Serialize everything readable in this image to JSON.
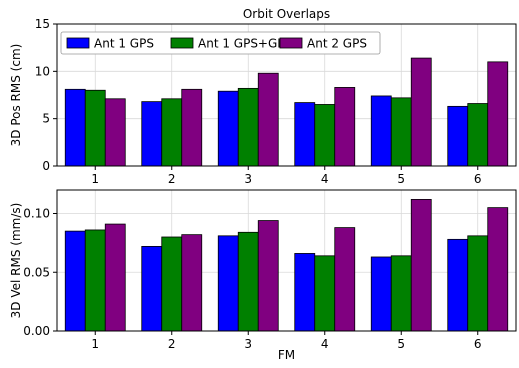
{
  "chart_data": [
    {
      "type": "bar",
      "title": "Orbit Overlaps",
      "xlabel": "",
      "ylabel": "3D Pos RMS (cm)",
      "categories": [
        "1",
        "2",
        "3",
        "4",
        "5",
        "6"
      ],
      "series": [
        {
          "name": "Ant 1 GPS",
          "color": "#0000ff",
          "values": [
            8.1,
            6.8,
            7.9,
            6.7,
            7.4,
            6.3
          ]
        },
        {
          "name": "Ant 1 GPS+GLO",
          "color": "#008000",
          "values": [
            8.0,
            7.1,
            8.2,
            6.5,
            7.2,
            6.6
          ]
        },
        {
          "name": "Ant 2 GPS",
          "color": "#800080",
          "values": [
            7.1,
            8.1,
            9.8,
            8.3,
            11.4,
            11.0
          ]
        }
      ],
      "ylim": [
        0,
        15
      ],
      "yticks": [
        "0",
        "5",
        "10",
        "15"
      ],
      "grid": true,
      "legend": "top-left"
    },
    {
      "type": "bar",
      "title": "",
      "xlabel": "FM",
      "ylabel": "3D Vel RMS (mm/s)",
      "categories": [
        "1",
        "2",
        "3",
        "4",
        "5",
        "6"
      ],
      "series": [
        {
          "name": "Ant 1 GPS",
          "color": "#0000ff",
          "values": [
            0.085,
            0.072,
            0.081,
            0.066,
            0.063,
            0.078
          ]
        },
        {
          "name": "Ant 1 GPS+GLO",
          "color": "#008000",
          "values": [
            0.086,
            0.08,
            0.084,
            0.064,
            0.064,
            0.081
          ]
        },
        {
          "name": "Ant 2 GPS",
          "color": "#800080",
          "values": [
            0.091,
            0.082,
            0.094,
            0.088,
            0.112,
            0.105
          ]
        }
      ],
      "ylim": [
        0,
        0.12
      ],
      "yticks": [
        "0.00",
        "0.05",
        "0.10"
      ],
      "grid": true,
      "legend": "none"
    }
  ]
}
